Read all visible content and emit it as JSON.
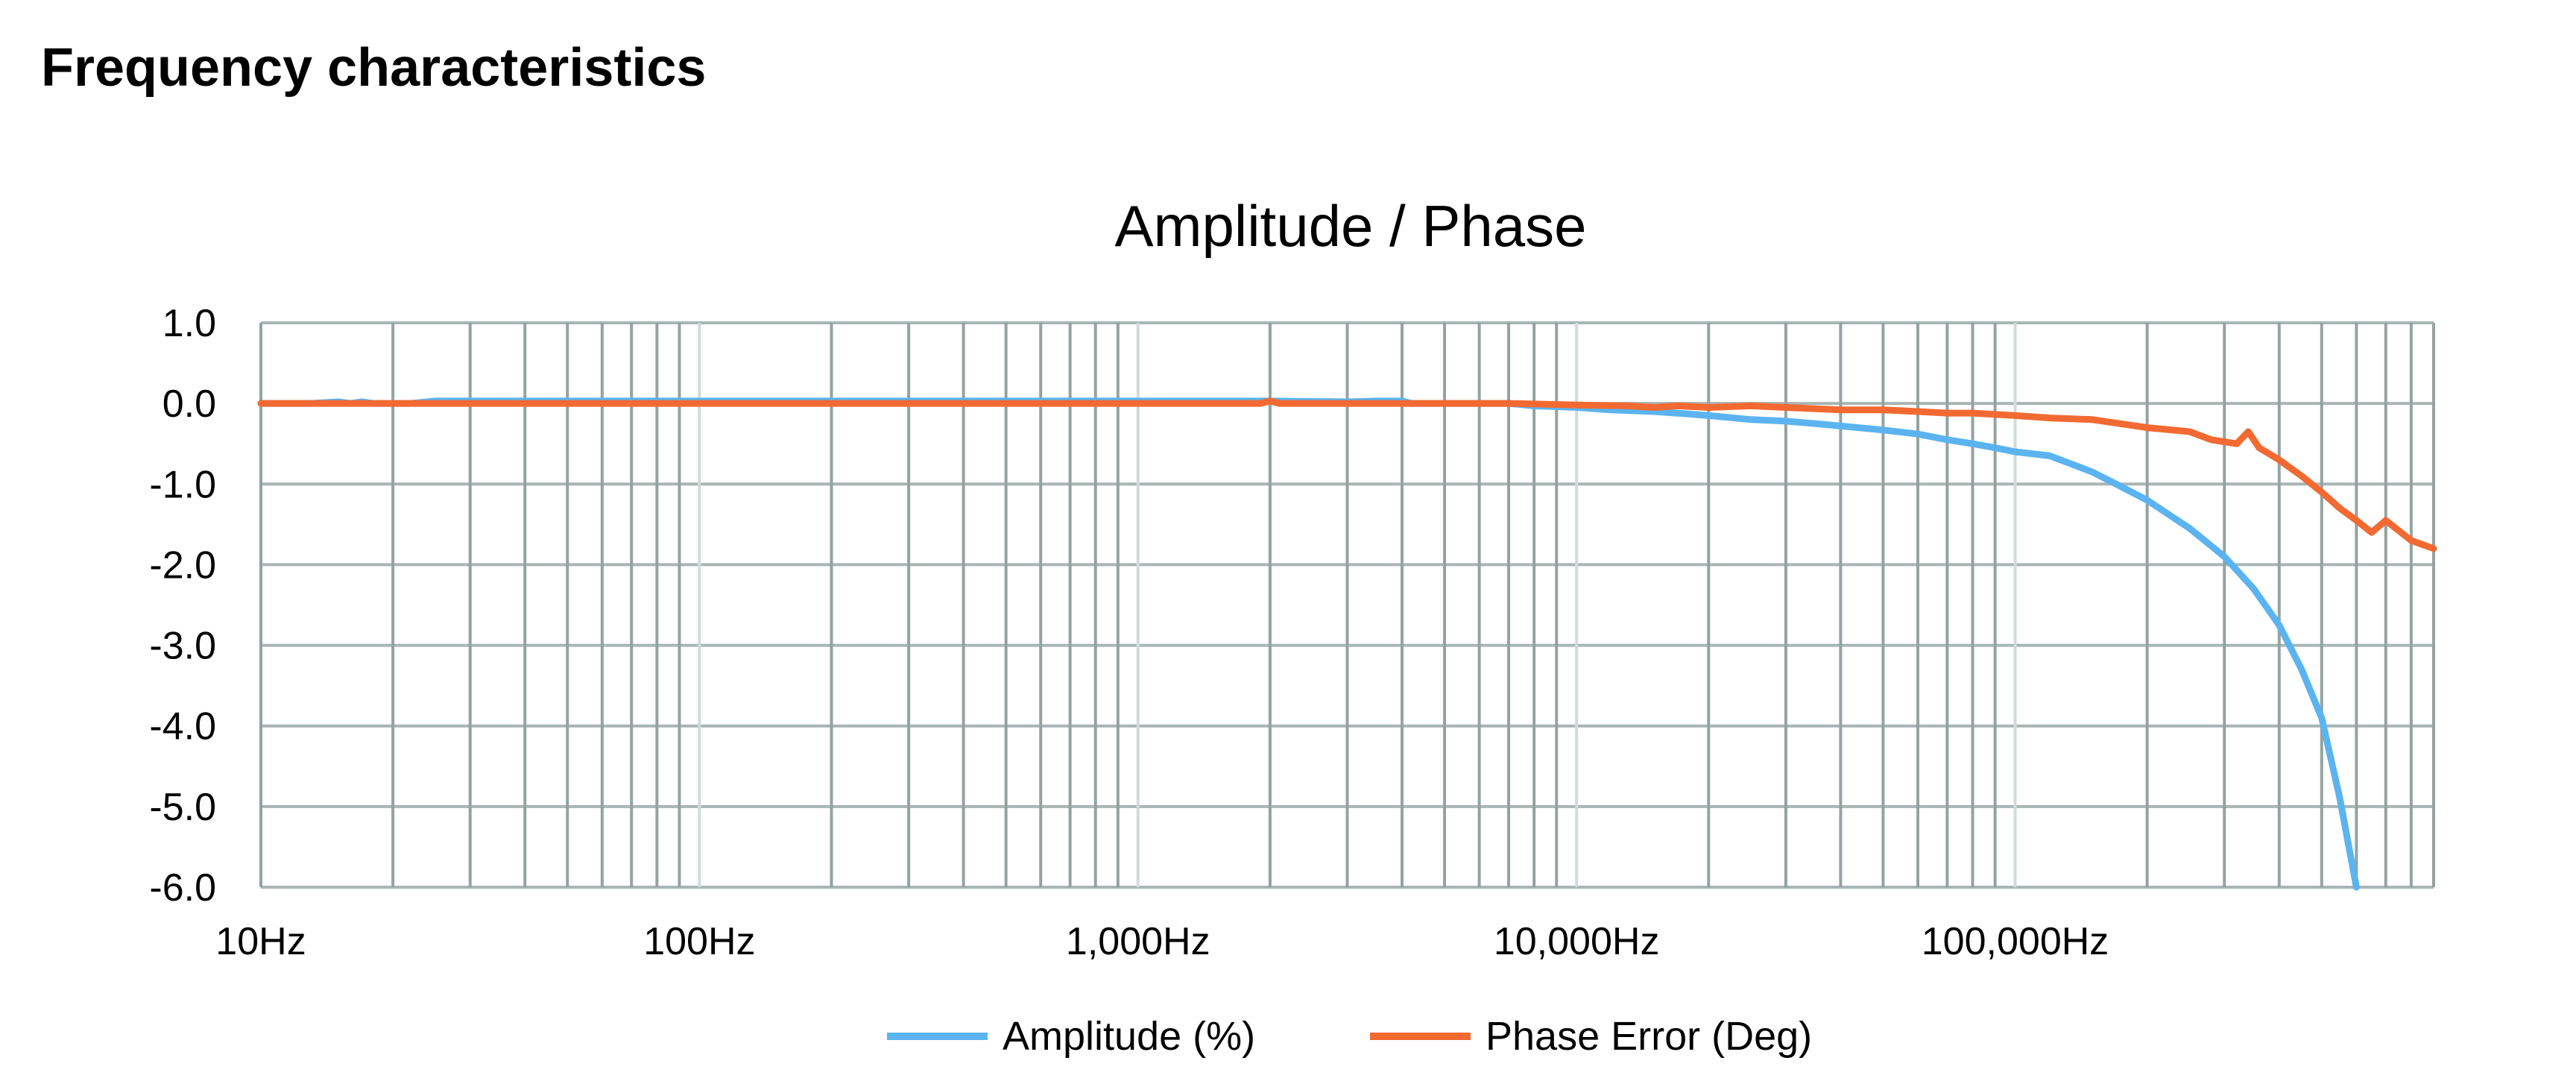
{
  "page": {
    "title": "Frequency characteristics"
  },
  "chart_data": {
    "type": "line",
    "title": "Amplitude  / Phase",
    "xscale": "log",
    "xlim": [
      10,
      900000
    ],
    "ylim": [
      -6.0,
      1.0
    ],
    "x_ticks": [
      {
        "value": 10,
        "label": "10Hz"
      },
      {
        "value": 100,
        "label": "100Hz"
      },
      {
        "value": 1000,
        "label": "1,000Hz"
      },
      {
        "value": 10000,
        "label": "10,000Hz"
      },
      {
        "value": 100000,
        "label": "100,000Hz"
      }
    ],
    "y_ticks": [
      {
        "value": 1.0,
        "label": "1.0"
      },
      {
        "value": 0.0,
        "label": "0.0"
      },
      {
        "value": -1.0,
        "label": "-1.0"
      },
      {
        "value": -2.0,
        "label": "-2.0"
      },
      {
        "value": -3.0,
        "label": "-3.0"
      },
      {
        "value": -4.0,
        "label": "-4.0"
      },
      {
        "value": -5.0,
        "label": "-5.0"
      },
      {
        "value": -6.0,
        "label": "-6.0"
      }
    ],
    "grid": true,
    "legend_position": "bottom",
    "series": [
      {
        "name": "Amplitude (%)",
        "color": "#5BB4F0",
        "points": [
          [
            10,
            0.0
          ],
          [
            13,
            0.0
          ],
          [
            15,
            0.02
          ],
          [
            16,
            0.0
          ],
          [
            17,
            0.02
          ],
          [
            18,
            0.0
          ],
          [
            20,
            0.0
          ],
          [
            22,
            0.0
          ],
          [
            25,
            0.03
          ],
          [
            40,
            0.03
          ],
          [
            80,
            0.03
          ],
          [
            100,
            0.03
          ],
          [
            200,
            0.03
          ],
          [
            500,
            0.03
          ],
          [
            1000,
            0.03
          ],
          [
            2000,
            0.03
          ],
          [
            3000,
            0.02
          ],
          [
            3500,
            0.03
          ],
          [
            4000,
            0.03
          ],
          [
            4200,
            0.0
          ],
          [
            5000,
            0.0
          ],
          [
            6000,
            0.0
          ],
          [
            7000,
            0.0
          ],
          [
            8000,
            -0.03
          ],
          [
            10000,
            -0.05
          ],
          [
            12000,
            -0.08
          ],
          [
            15000,
            -0.1
          ],
          [
            18000,
            -0.13
          ],
          [
            20000,
            -0.15
          ],
          [
            25000,
            -0.2
          ],
          [
            30000,
            -0.22
          ],
          [
            35000,
            -0.25
          ],
          [
            40000,
            -0.28
          ],
          [
            50000,
            -0.33
          ],
          [
            60000,
            -0.38
          ],
          [
            70000,
            -0.45
          ],
          [
            80000,
            -0.5
          ],
          [
            90000,
            -0.55
          ],
          [
            100000,
            -0.6
          ],
          [
            120000,
            -0.65
          ],
          [
            150000,
            -0.85
          ],
          [
            170000,
            -1.0
          ],
          [
            200000,
            -1.2
          ],
          [
            250000,
            -1.55
          ],
          [
            300000,
            -1.9
          ],
          [
            350000,
            -2.3
          ],
          [
            400000,
            -2.75
          ],
          [
            450000,
            -3.3
          ],
          [
            500000,
            -3.9
          ],
          [
            550000,
            -4.9
          ],
          [
            600000,
            -6.0
          ]
        ]
      },
      {
        "name": "Phase Error (Deg)",
        "color": "#F26A32",
        "points": [
          [
            10,
            0.0
          ],
          [
            100,
            0.0
          ],
          [
            1000,
            0.0
          ],
          [
            1900,
            0.0
          ],
          [
            2000,
            0.03
          ],
          [
            2100,
            0.0
          ],
          [
            3000,
            0.0
          ],
          [
            5000,
            0.0
          ],
          [
            7000,
            0.0
          ],
          [
            10000,
            -0.02
          ],
          [
            13000,
            -0.03
          ],
          [
            15000,
            -0.05
          ],
          [
            17000,
            -0.03
          ],
          [
            20000,
            -0.05
          ],
          [
            25000,
            -0.03
          ],
          [
            30000,
            -0.05
          ],
          [
            40000,
            -0.08
          ],
          [
            50000,
            -0.08
          ],
          [
            60000,
            -0.1
          ],
          [
            70000,
            -0.12
          ],
          [
            80000,
            -0.12
          ],
          [
            100000,
            -0.15
          ],
          [
            120000,
            -0.18
          ],
          [
            150000,
            -0.2
          ],
          [
            200000,
            -0.3
          ],
          [
            250000,
            -0.35
          ],
          [
            280000,
            -0.45
          ],
          [
            320000,
            -0.5
          ],
          [
            340000,
            -0.35
          ],
          [
            360000,
            -0.55
          ],
          [
            400000,
            -0.7
          ],
          [
            450000,
            -0.9
          ],
          [
            500000,
            -1.1
          ],
          [
            550000,
            -1.3
          ],
          [
            600000,
            -1.45
          ],
          [
            650000,
            -1.6
          ],
          [
            700000,
            -1.45
          ],
          [
            800000,
            -1.7
          ],
          [
            900000,
            -1.8
          ]
        ]
      }
    ]
  }
}
